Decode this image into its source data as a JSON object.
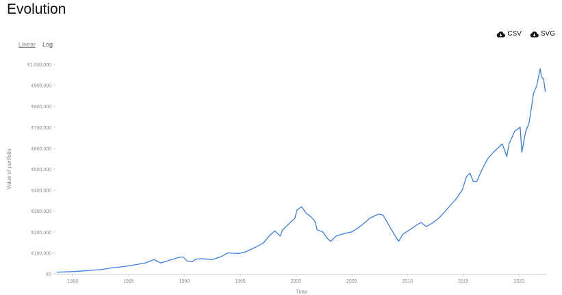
{
  "page": {
    "title": "Evolution"
  },
  "downloads": {
    "csv_label": "CSV",
    "svg_label": "SVG"
  },
  "scale": {
    "linear_label": "Linear",
    "log_label": "Log",
    "active": "linear"
  },
  "colors": {
    "line": "#3a7de0",
    "axis": "#cccccc",
    "tick_text": "#888888"
  },
  "chart_data": {
    "type": "line",
    "title": "",
    "xlabel": "Time",
    "ylabel": "Value of portfolio",
    "xlim": [
      1978.5,
      2022.5
    ],
    "ylim": [
      0,
      1000000
    ],
    "x_ticks": [
      1980,
      1985,
      1990,
      1995,
      2000,
      2005,
      2010,
      2015,
      2020
    ],
    "y_ticks": [
      {
        "value": 0,
        "label": "€0"
      },
      {
        "value": 100000,
        "label": "€100,000"
      },
      {
        "value": 200000,
        "label": "€200,000"
      },
      {
        "value": 300000,
        "label": "€300,000"
      },
      {
        "value": 400000,
        "label": "€400,000"
      },
      {
        "value": 500000,
        "label": "€500,000"
      },
      {
        "value": 600000,
        "label": "€600,000"
      },
      {
        "value": 700000,
        "label": "€700,000"
      },
      {
        "value": 800000,
        "label": "€800,000"
      },
      {
        "value": 900000,
        "label": "€900,000"
      },
      {
        "value": 1000000,
        "label": "€1,000,000"
      }
    ],
    "grid": false,
    "legend": "none",
    "series": [
      {
        "x": [
          1978.6,
          1979.5,
          1980.5,
          1981.5,
          1982.5,
          1983.5,
          1984.5,
          1985.5,
          1986.5,
          1987.3,
          1987.6,
          1987.9,
          1988.5,
          1989.5,
          1989.9,
          1990.2,
          1990.7,
          1991.0,
          1991.6,
          1992.5,
          1993.3,
          1993.9,
          1994.3,
          1994.9,
          1995.5,
          1996.5,
          1997.1,
          1997.6,
          1998.1,
          1998.6,
          1998.8,
          1999.4,
          1999.9,
          2000.1,
          2000.5,
          2000.9,
          2001.3,
          2001.7,
          2001.9,
          2002.4,
          2002.8,
          2003.1,
          2003.6,
          2004.2,
          2005.0,
          2005.6,
          2006.3,
          2006.6,
          2007.4,
          2007.8,
          2008.3,
          2008.9,
          2009.2,
          2009.6,
          2010.2,
          2010.6,
          2011.2,
          2011.7,
          2012.3,
          2012.8,
          2013.4,
          2013.9,
          2014.4,
          2014.9,
          2015.3,
          2015.6,
          2015.9,
          2016.2,
          2016.7,
          2017.2,
          2017.7,
          2018.1,
          2018.5,
          2018.9,
          2019.1,
          2019.6,
          2020.1,
          2020.25,
          2020.6,
          2020.9,
          2021.3,
          2021.6,
          2021.9,
          2022.0,
          2022.2,
          2022.35
        ],
        "y": [
          8000,
          9000,
          12000,
          16000,
          20000,
          28000,
          34000,
          42000,
          52000,
          68000,
          58000,
          52000,
          62000,
          78000,
          80000,
          62000,
          58000,
          70000,
          72000,
          68000,
          82000,
          100000,
          98000,
          97000,
          105000,
          130000,
          148000,
          180000,
          205000,
          180000,
          210000,
          240000,
          265000,
          305000,
          320000,
          290000,
          275000,
          250000,
          210000,
          200000,
          170000,
          155000,
          180000,
          190000,
          200000,
          220000,
          250000,
          265000,
          285000,
          280000,
          235000,
          180000,
          155000,
          190000,
          210000,
          225000,
          245000,
          225000,
          245000,
          265000,
          300000,
          330000,
          360000,
          400000,
          465000,
          480000,
          440000,
          440000,
          500000,
          550000,
          580000,
          600000,
          620000,
          560000,
          620000,
          680000,
          700000,
          580000,
          680000,
          720000,
          860000,
          900000,
          980000,
          940000,
          930000,
          870000
        ]
      }
    ]
  }
}
